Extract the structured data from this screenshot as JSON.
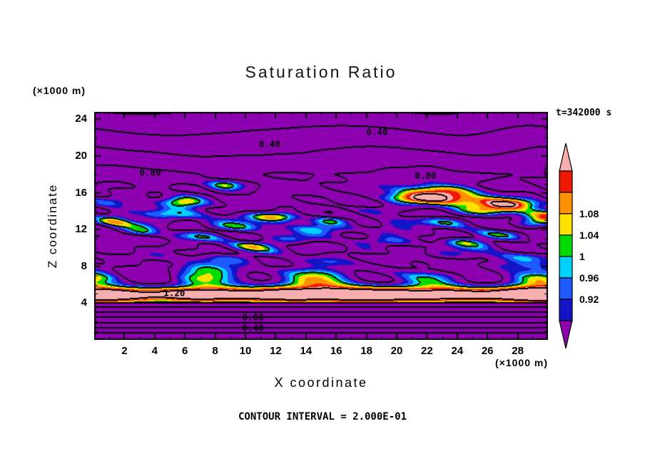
{
  "chart_data": {
    "type": "heatmap",
    "variant": "filled-contour-cross-section",
    "title": "Saturation Ratio",
    "xlabel": "X coordinate",
    "ylabel": "Z coordinate",
    "x_units": "(×1000 m)",
    "y_units": "(×1000 m)",
    "time_annotation": "t=342000 s",
    "contour_interval_label": "CONTOUR INTERVAL = 2.000E-01",
    "contour_interval": 0.2,
    "xlim": [
      0,
      30
    ],
    "zlim": [
      0,
      24.8
    ],
    "x_ticks": [
      2,
      4,
      6,
      8,
      10,
      12,
      14,
      16,
      18,
      20,
      22,
      24,
      26,
      28
    ],
    "z_ticks": [
      4,
      8,
      12,
      16,
      20,
      24
    ],
    "grid": false,
    "legend_position": "right-colorbar",
    "line_levels": [
      0.2,
      0.4,
      0.6,
      0.8,
      1.0,
      1.2
    ],
    "fill_levels": [
      0.88,
      0.92,
      0.96,
      1.0,
      1.04,
      1.08,
      1.12,
      1.16
    ],
    "fill_colors": [
      "#8C00B0",
      "#1414C8",
      "#1E5AFF",
      "#00D2FF",
      "#00DC00",
      "#FFE100",
      "#FF9100",
      "#F01800",
      "#F6AEAE"
    ],
    "colorbar_labels": [
      {
        "text": "1.08",
        "boundary_index": 2
      },
      {
        "text": "1.04",
        "boundary_index": 3
      },
      {
        "text": "1",
        "boundary_index": 4
      },
      {
        "text": "0.96",
        "boundary_index": 5
      },
      {
        "text": "0.92",
        "boundary_index": 6
      }
    ],
    "contour_labels": [
      {
        "text": "0.40",
        "x": 18.7,
        "z": 22.6
      },
      {
        "text": "0.40",
        "x": 11.6,
        "z": 21.3
      },
      {
        "text": "0.80",
        "x": 3.7,
        "z": 18.2
      },
      {
        "text": "0.80",
        "x": 21.9,
        "z": 17.9
      },
      {
        "text": "1.20",
        "x": 5.3,
        "z": 5.1
      },
      {
        "text": "0.80",
        "x": 10.5,
        "z": 2.5
      },
      {
        "text": "0.40",
        "x": 10.5,
        "z": 1.35
      }
    ],
    "description": "Filled contour plot of saturation ratio on an X-Z vertical cross-section at t=342000 s. Mostly subsaturated purple background (S<0.88) with horizontally elongated moist streaks (blue-cyan-green, with local yellow/orange/red maxima) between z≈7 and z≈18 (×1000 m), a strongly supersaturated pink/red layer (S>1.12, 1.20 contour) near z≈4-6, a stratified layer of evenly spaced straight contour lines (0.2 interval, 0.40 and 0.80 labeled) below z≈4, and wavy 0.40/0.80 contour lines in the purple region above z≈18.",
    "field_model": {
      "note": "procedural approximation of the rendered saturation-ratio field",
      "base": 0.76,
      "boundary_layer_top_z": 4.05,
      "boundary_layer_fill_value": 0.7,
      "stratified_ramp": {
        "intercept": -0.08,
        "slope": 0.36
      },
      "surface_band": {
        "center_z": 4.9,
        "width": 0.95,
        "amplitude": 0.56
      },
      "fringe_band": {
        "center_z": 6.7,
        "width": 1.0,
        "amplitude": 0.26
      },
      "cyan_band": {
        "center_z": 8.3,
        "width": 1.3,
        "amplitude": 0.06
      },
      "mid_streaks": {
        "center_z": 12.2,
        "spread": 4.9,
        "offset": 0.05,
        "amplitude": 0.21
      },
      "upper_rise": {
        "start_z": 16.0,
        "end_z": 18.0,
        "amount": 0.06
      },
      "upper_decline": {
        "start_z": 18.0,
        "rate": 0.088
      },
      "hotspots": [
        {
          "x": 22.8,
          "z": 15.6,
          "sx": 3.6,
          "sz": 1.05,
          "a": 0.34
        },
        {
          "x": 27.5,
          "z": 14.6,
          "sx": 2.2,
          "sz": 0.85,
          "a": 0.32
        },
        {
          "x": 29.6,
          "z": 13.2,
          "sx": 1.6,
          "sz": 0.8,
          "a": 0.28
        },
        {
          "x": 5.9,
          "z": 15.2,
          "sx": 1.5,
          "sz": 0.7,
          "a": 0.3
        },
        {
          "x": 1.3,
          "z": 13.2,
          "sx": 1.3,
          "sz": 0.7,
          "a": 0.28
        },
        {
          "x": 8.6,
          "z": 16.8,
          "sx": 1.3,
          "sz": 0.6,
          "a": 0.24
        },
        {
          "x": 12.4,
          "z": 13.4,
          "sx": 1.6,
          "sz": 0.6,
          "a": 0.22
        },
        {
          "x": 19.8,
          "z": 12.5,
          "sx": 1.6,
          "sz": 0.65,
          "a": 0.26
        },
        {
          "x": 15.3,
          "z": 12.9,
          "sx": 1.4,
          "sz": 0.55,
          "a": 0.18
        },
        {
          "x": 10.6,
          "z": 10.4,
          "sx": 1.5,
          "sz": 0.5,
          "a": 0.16
        },
        {
          "x": 3.2,
          "z": 11.8,
          "sx": 1.2,
          "sz": 0.5,
          "a": 0.15
        },
        {
          "x": 24.5,
          "z": 10.8,
          "sx": 1.4,
          "sz": 0.5,
          "a": 0.15
        }
      ]
    }
  }
}
